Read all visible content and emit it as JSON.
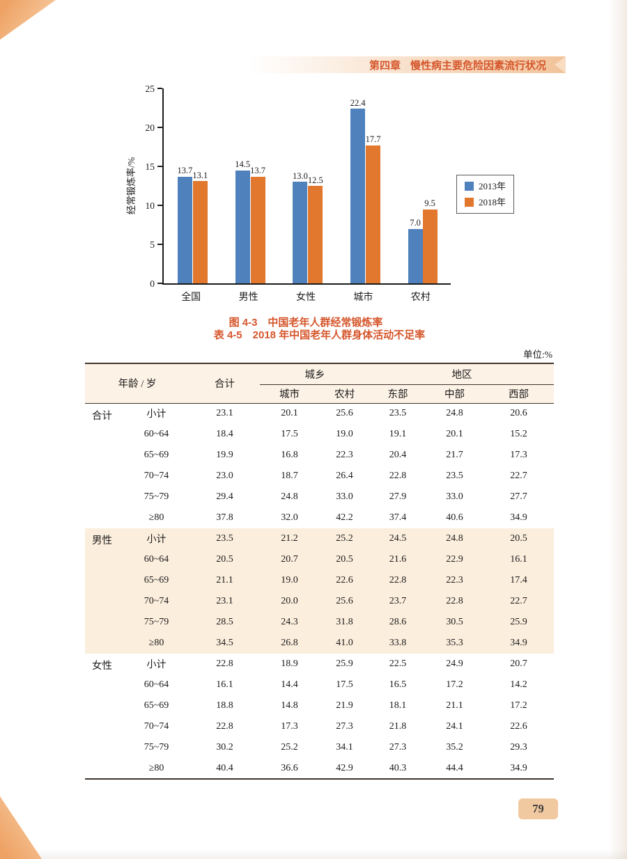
{
  "header": {
    "chapter": "第四章",
    "title": "慢性病主要危险因素流行状况"
  },
  "figure": {
    "caption": "图 4-3　中国老年人群经常锻炼率"
  },
  "chart_data": {
    "type": "bar",
    "title": "",
    "categories": [
      "全国",
      "男性",
      "女性",
      "城市",
      "农村"
    ],
    "series": [
      {
        "name": "2013年",
        "color": "#4f81bd",
        "values": [
          13.7,
          14.5,
          13.0,
          22.4,
          7.0
        ]
      },
      {
        "name": "2018年",
        "color": "#e2772e",
        "values": [
          13.1,
          13.7,
          12.5,
          17.7,
          9.5
        ]
      }
    ],
    "xlabel": "",
    "ylabel": "经常锻炼率/%",
    "ylim": [
      0,
      25
    ],
    "yticks": [
      0,
      5,
      10,
      15,
      20,
      25
    ],
    "grid": false,
    "legend_position": "right"
  },
  "table": {
    "title": "表 4-5　2018 年中国老年人群身体活动不足率",
    "unit": "单位:%",
    "columns": {
      "age_header": "年龄 / 岁",
      "total": "合计",
      "group_urban_rural": "城乡",
      "group_region": "地区",
      "subheaders": [
        "城市",
        "农村",
        "东部",
        "中部",
        "西部"
      ]
    },
    "groups": [
      {
        "label": "合计",
        "rows": [
          {
            "age": "小计",
            "values": [
              "23.1",
              "20.1",
              "25.6",
              "23.5",
              "24.8",
              "20.6"
            ]
          },
          {
            "age": "60~64",
            "values": [
              "18.4",
              "17.5",
              "19.0",
              "19.1",
              "20.1",
              "15.2"
            ]
          },
          {
            "age": "65~69",
            "values": [
              "19.9",
              "16.8",
              "22.3",
              "20.4",
              "21.7",
              "17.3"
            ]
          },
          {
            "age": "70~74",
            "values": [
              "23.0",
              "18.7",
              "26.4",
              "22.8",
              "23.5",
              "22.7"
            ]
          },
          {
            "age": "75~79",
            "values": [
              "29.4",
              "24.8",
              "33.0",
              "27.9",
              "33.0",
              "27.7"
            ]
          },
          {
            "age": "≥80",
            "values": [
              "37.8",
              "32.0",
              "42.2",
              "37.4",
              "40.6",
              "34.9"
            ]
          }
        ]
      },
      {
        "label": "男性",
        "rows": [
          {
            "age": "小计",
            "values": [
              "23.5",
              "21.2",
              "25.2",
              "24.5",
              "24.8",
              "20.5"
            ]
          },
          {
            "age": "60~64",
            "values": [
              "20.5",
              "20.7",
              "20.5",
              "21.6",
              "22.9",
              "16.1"
            ]
          },
          {
            "age": "65~69",
            "values": [
              "21.1",
              "19.0",
              "22.6",
              "22.8",
              "22.3",
              "17.4"
            ]
          },
          {
            "age": "70~74",
            "values": [
              "23.1",
              "20.0",
              "25.6",
              "23.7",
              "22.8",
              "22.7"
            ]
          },
          {
            "age": "75~79",
            "values": [
              "28.5",
              "24.3",
              "31.8",
              "28.6",
              "30.5",
              "25.9"
            ]
          },
          {
            "age": "≥80",
            "values": [
              "34.5",
              "26.8",
              "41.0",
              "33.8",
              "35.3",
              "34.9"
            ]
          }
        ]
      },
      {
        "label": "女性",
        "rows": [
          {
            "age": "小计",
            "values": [
              "22.8",
              "18.9",
              "25.9",
              "22.5",
              "24.9",
              "20.7"
            ]
          },
          {
            "age": "60~64",
            "values": [
              "16.1",
              "14.4",
              "17.5",
              "16.5",
              "17.2",
              "14.2"
            ]
          },
          {
            "age": "65~69",
            "values": [
              "18.8",
              "14.8",
              "21.9",
              "18.1",
              "21.1",
              "17.2"
            ]
          },
          {
            "age": "70~74",
            "values": [
              "22.8",
              "17.3",
              "27.3",
              "21.8",
              "24.1",
              "22.6"
            ]
          },
          {
            "age": "75~79",
            "values": [
              "30.2",
              "25.2",
              "34.1",
              "27.3",
              "35.2",
              "29.3"
            ]
          },
          {
            "age": "≥80",
            "values": [
              "40.4",
              "36.6",
              "42.9",
              "40.3",
              "44.4",
              "34.9"
            ]
          }
        ]
      }
    ]
  },
  "footer": {
    "page_number": "79"
  }
}
